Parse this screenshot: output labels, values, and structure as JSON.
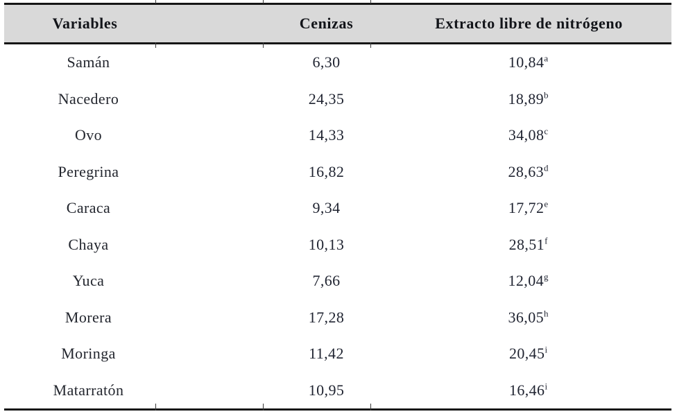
{
  "table": {
    "columns": [
      "Variables",
      "Cenizas",
      "Extracto libre de nitrógeno"
    ],
    "rows": [
      {
        "variable": "Samán",
        "cenizas": "6,30",
        "extracto": "10,84",
        "sup": "a"
      },
      {
        "variable": "Nacedero",
        "cenizas": "24,35",
        "extracto": "18,89",
        "sup": "b"
      },
      {
        "variable": "Ovo",
        "cenizas": "14,33",
        "extracto": "34,08",
        "sup": "c"
      },
      {
        "variable": "Peregrina",
        "cenizas": "16,82",
        "extracto": "28,63",
        "sup": "d"
      },
      {
        "variable": "Caraca",
        "cenizas": "9,34",
        "extracto": "17,72",
        "sup": "e"
      },
      {
        "variable": "Chaya",
        "cenizas": "10,13",
        "extracto": "28,51",
        "sup": "f"
      },
      {
        "variable": "Yuca",
        "cenizas": "7,66",
        "extracto": "12,04",
        "sup": "g"
      },
      {
        "variable": "Morera",
        "cenizas": "17,28",
        "extracto": "36,05",
        "sup": "h"
      },
      {
        "variable": "Moringa",
        "cenizas": "11,42",
        "extracto": "20,45",
        "sup": "i"
      },
      {
        "variable": "Matarratón",
        "cenizas": "10,95",
        "extracto": "16,46",
        "sup": "i"
      }
    ]
  },
  "colors": {
    "header_background": "#d9d9d9",
    "rule": "#161616",
    "text": "#20242c"
  },
  "chart_data": {
    "type": "table",
    "title": "",
    "columns": [
      "Variables",
      "Cenizas",
      "Extracto libre de nitrógeno"
    ],
    "categories": [
      "Samán",
      "Nacedero",
      "Ovo",
      "Peregrina",
      "Caraca",
      "Chaya",
      "Yuca",
      "Morera",
      "Moringa",
      "Matarratón"
    ],
    "series": [
      {
        "name": "Cenizas",
        "values": [
          6.3,
          24.35,
          14.33,
          16.82,
          9.34,
          10.13,
          7.66,
          17.28,
          11.42,
          10.95
        ]
      },
      {
        "name": "Extracto libre de nitrógeno",
        "values": [
          10.84,
          18.89,
          34.08,
          28.63,
          17.72,
          28.51,
          12.04,
          36.05,
          20.45,
          16.46
        ]
      }
    ],
    "superscripts": [
      "a",
      "b",
      "c",
      "d",
      "e",
      "f",
      "g",
      "h",
      "i",
      "i"
    ]
  }
}
